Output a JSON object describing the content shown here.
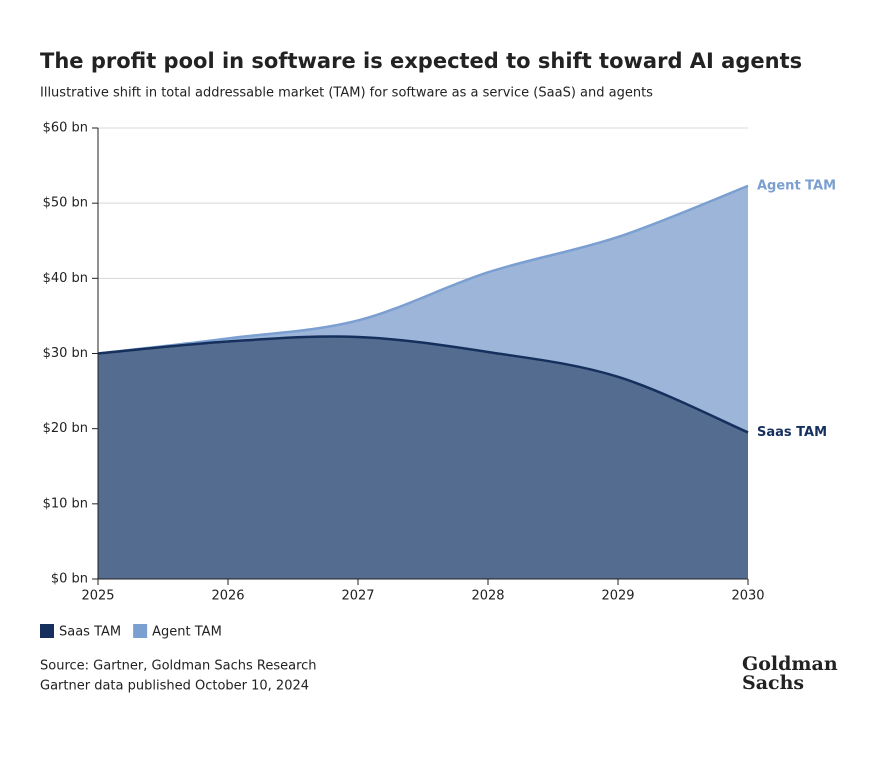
{
  "chart_data": {
    "type": "area",
    "title": "The profit pool in software is expected to shift toward AI agents",
    "subtitle": "Illustrative shift in total addressable market (TAM) for software as a service (SaaS) and agents",
    "x": [
      2025,
      2026,
      2027,
      2028,
      2029,
      2030
    ],
    "xlim": [
      2025,
      2030
    ],
    "xticks": [
      2025,
      2026,
      2027,
      2028,
      2029,
      2030
    ],
    "ylim": [
      0,
      60
    ],
    "yticks": [
      {
        "value": 0,
        "label": "$0 bn"
      },
      {
        "value": 10,
        "label": "$10 bn"
      },
      {
        "value": 20,
        "label": "$20 bn"
      },
      {
        "value": 30,
        "label": "$30 bn"
      },
      {
        "value": 40,
        "label": "$40 bn"
      },
      {
        "value": 50,
        "label": "$50 bn"
      },
      {
        "value": 60,
        "label": "$60 bn"
      }
    ],
    "grid": true,
    "series": [
      {
        "name": "Saas TAM",
        "color": "#15305c",
        "fill": "#546c8f",
        "values": [
          30,
          31.6,
          32.2,
          30.2,
          26.9,
          19.5
        ]
      },
      {
        "name": "Agent TAM",
        "color": "#7b9fd0",
        "fill": "#9cb5d8",
        "values": [
          30,
          32.0,
          34.4,
          40.8,
          45.5,
          52.3
        ]
      }
    ],
    "source": [
      "Source: Gartner, Goldman Sachs Research",
      "Gartner data published October 10, 2024"
    ],
    "logo": [
      "Goldman",
      "Sachs"
    ]
  }
}
